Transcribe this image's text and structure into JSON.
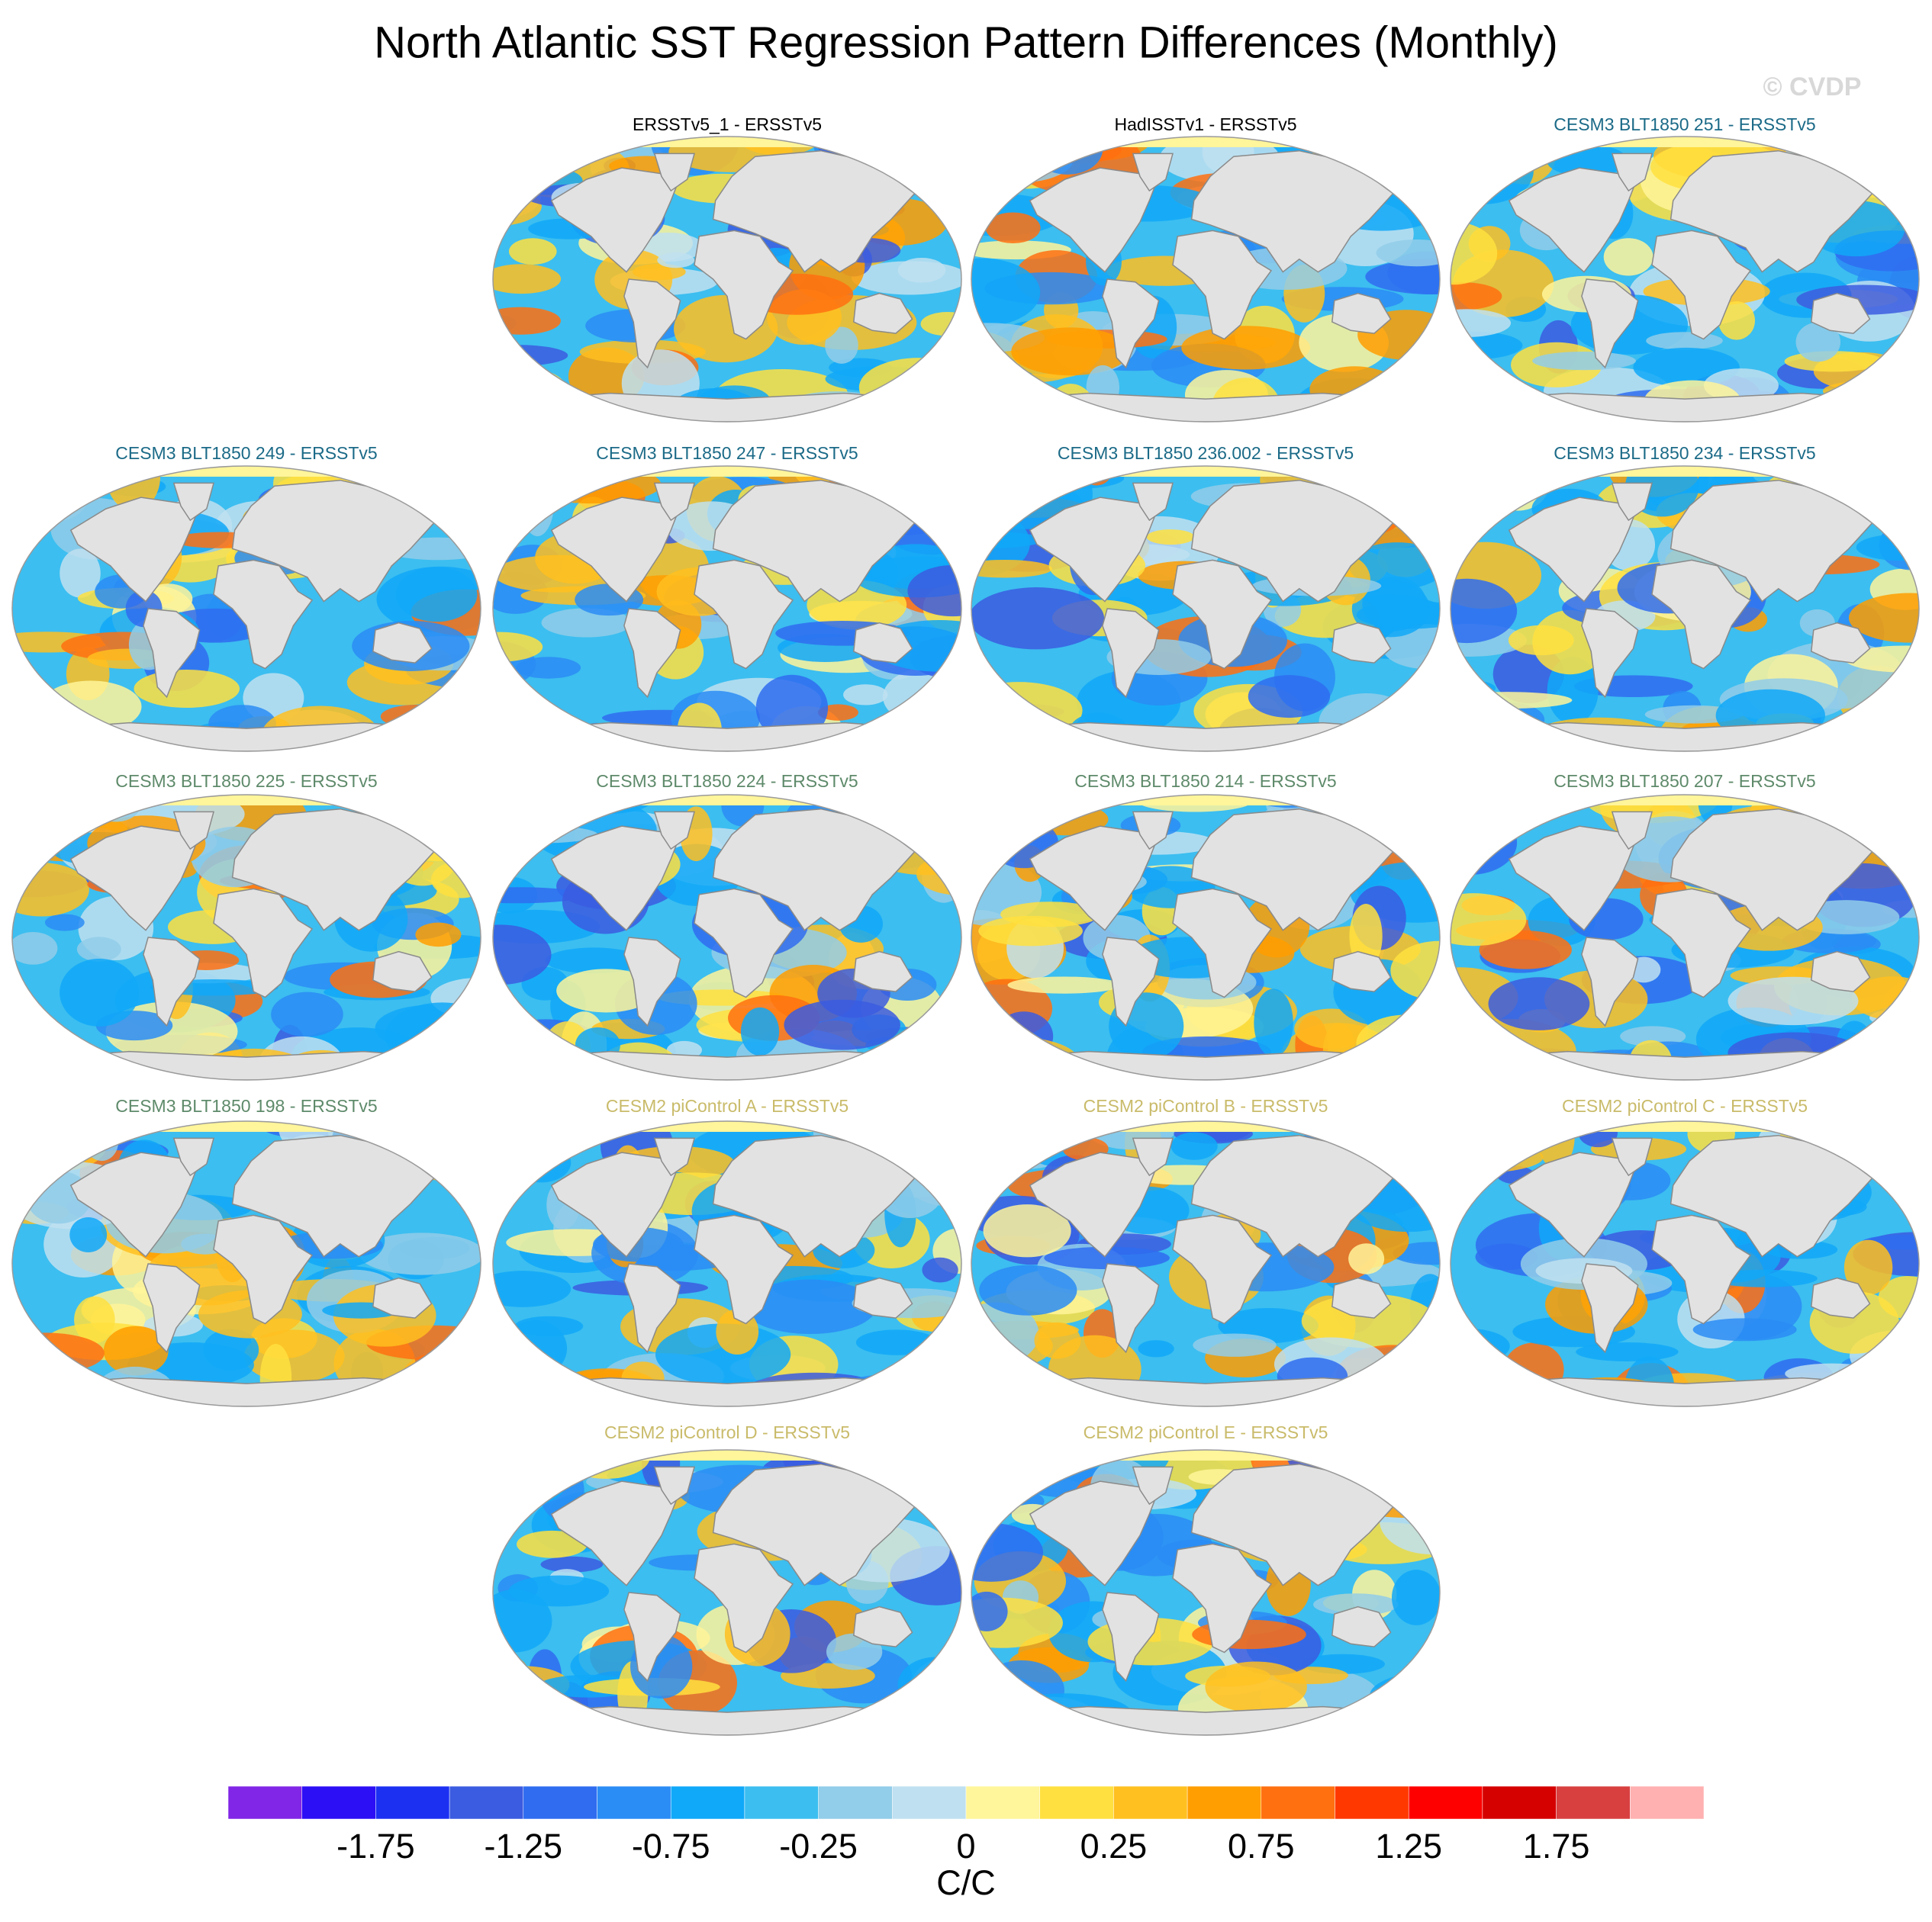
{
  "title": "North Atlantic SST Regression Pattern Differences (Monthly)",
  "watermark": "© CVDP",
  "panels": [
    {
      "title": "ERSSTv5_1 - ERSSTv5",
      "color": "#000000"
    },
    {
      "title": "HadISSTv1 - ERSSTv5",
      "color": "#000000"
    },
    {
      "title": "CESM3 BLT1850 251 - ERSSTv5",
      "color": "#1b6a87"
    },
    {
      "title": "CESM3 BLT1850 249 - ERSSTv5",
      "color": "#1b6a87"
    },
    {
      "title": "CESM3 BLT1850 247 - ERSSTv5",
      "color": "#1b6a87"
    },
    {
      "title": "CESM3 BLT1850 236.002 - ERSSTv5",
      "color": "#1b6a87"
    },
    {
      "title": "CESM3 BLT1850 234 - ERSSTv5",
      "color": "#1b6a87"
    },
    {
      "title": "CESM3 BLT1850 225 - ERSSTv5",
      "color": "#5e8a6a"
    },
    {
      "title": "CESM3 BLT1850 224 - ERSSTv5",
      "color": "#5e8a6a"
    },
    {
      "title": "CESM3 BLT1850 214 - ERSSTv5",
      "color": "#5e8a6a"
    },
    {
      "title": "CESM3 BLT1850 207 - ERSSTv5",
      "color": "#5e8a6a"
    },
    {
      "title": "CESM3 BLT1850 198 - ERSSTv5",
      "color": "#5e8a6a"
    },
    {
      "title": "CESM2 piControl A - ERSSTv5",
      "color": "#c9bb6a"
    },
    {
      "title": "CESM2 piControl B - ERSSTv5",
      "color": "#c9bb6a"
    },
    {
      "title": "CESM2 piControl C - ERSSTv5",
      "color": "#c9bb6a"
    },
    {
      "title": "CESM2 piControl D - ERSSTv5",
      "color": "#c9bb6a"
    },
    {
      "title": "CESM2 piControl E - ERSSTv5",
      "color": "#c9bb6a"
    }
  ],
  "colorbar": {
    "colors": [
      "#8126e6",
      "#2c0ff5",
      "#1c30f2",
      "#3b5ce0",
      "#2f6cf0",
      "#2a8cf5",
      "#10a8f8",
      "#3cbef0",
      "#92cde9",
      "#bfe0f0",
      "#fff59a",
      "#ffe040",
      "#ffc020",
      "#ff9e00",
      "#ff7010",
      "#ff3800",
      "#ff0000",
      "#d50000",
      "#d84040",
      "#ffb0b0"
    ],
    "ticks": [
      -1.75,
      -1.25,
      -0.75,
      -0.25,
      0,
      0.25,
      0.75,
      1.25,
      1.75
    ],
    "unit": "C/C"
  }
}
